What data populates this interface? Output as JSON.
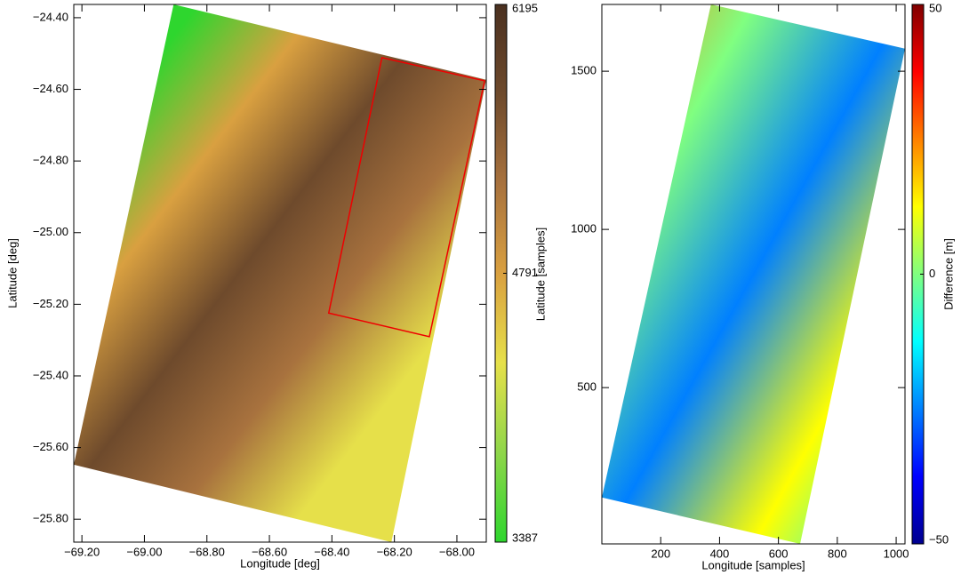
{
  "chart_data": [
    {
      "type": "image",
      "xlabel": "Longitude [deg]",
      "ylabel": "Latitude [deg]",
      "xlim": [
        -69.226,
        -67.906
      ],
      "xticks": [
        {
          "value": -69.2,
          "label": "−69.20"
        },
        {
          "value": -69.0,
          "label": "−69.00"
        },
        {
          "value": -68.8,
          "label": "−68.80"
        },
        {
          "value": -68.6,
          "label": "−68.60"
        },
        {
          "value": -68.4,
          "label": "−68.40"
        },
        {
          "value": -68.2,
          "label": "−68.20"
        },
        {
          "value": -68.0,
          "label": "−68.00"
        }
      ],
      "ylim": [
        -25.864,
        -24.363
      ],
      "yticks": [
        {
          "value": -24.4,
          "label": "−24.40"
        },
        {
          "value": -24.6,
          "label": "−24.60"
        },
        {
          "value": -24.8,
          "label": "−24.80"
        },
        {
          "value": -25.0,
          "label": "−25.00"
        },
        {
          "value": -25.2,
          "label": "−25.20"
        },
        {
          "value": -25.4,
          "label": "−25.40"
        },
        {
          "value": -25.6,
          "label": "−25.60"
        },
        {
          "value": -25.8,
          "label": "−25.80"
        }
      ],
      "clim": [
        3387,
        6195
      ],
      "cticks": [
        3387,
        4791,
        6195
      ],
      "colormap": [
        "#2ed62e",
        "#8fd64a",
        "#e6e04a",
        "#d9a040",
        "#a8723e",
        "#6e4a2c",
        "#4a3020"
      ]
    },
    {
      "type": "image",
      "xlabel": "Longitude [samples]",
      "ylabel": "Latitude [samples]",
      "clabel": "Difference [m]",
      "xlim": [
        0,
        1030
      ],
      "xticks": [
        200,
        400,
        600,
        800,
        1000
      ],
      "ylim": [
        6,
        1711
      ],
      "yticks": [
        500,
        1000,
        1500
      ],
      "clim": [
        -50,
        50
      ],
      "cticks": [
        {
          "value": -50,
          "label": "−50"
        },
        0,
        50
      ],
      "colormap": [
        "#00008f",
        "#0000ff",
        "#0080ff",
        "#00ffff",
        "#80ff80",
        "#ffff00",
        "#ff8000",
        "#ff0000",
        "#800000"
      ]
    }
  ]
}
